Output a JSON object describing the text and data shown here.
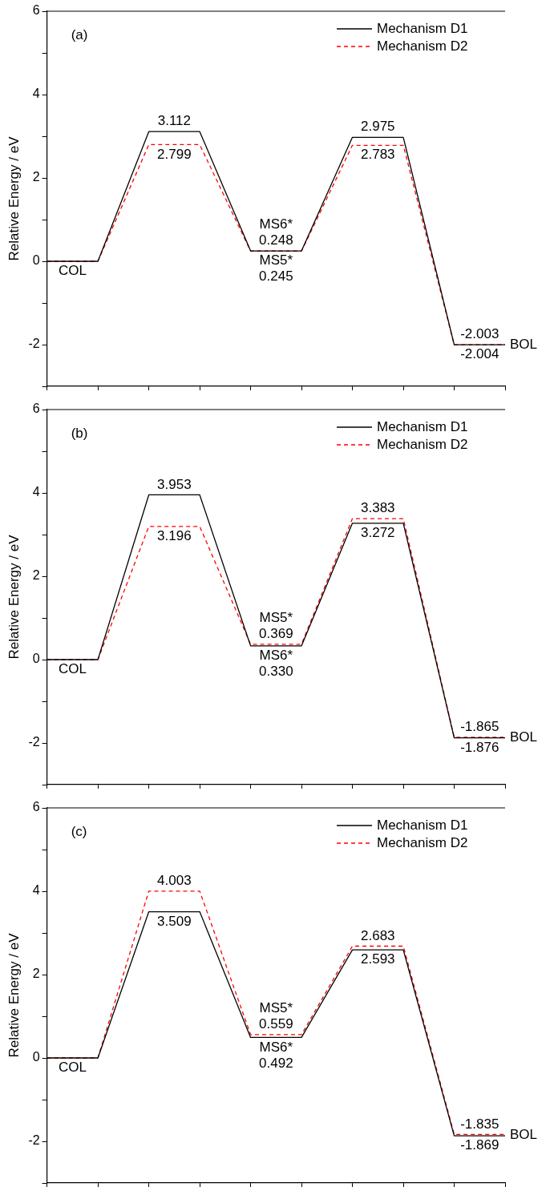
{
  "chart_data": [
    {
      "type": "line",
      "title": "(a)",
      "ylabel": "Relative Energy / eV",
      "categories": [
        null,
        null,
        null,
        null,
        null,
        null,
        null,
        null,
        null,
        null
      ],
      "ylim": [
        -3,
        6
      ],
      "yticks": [
        {
          "value": -3,
          "label": null
        },
        -2,
        {
          "value": -1,
          "label": null
        },
        0,
        {
          "value": 1,
          "label": null
        },
        2,
        {
          "value": 3,
          "label": null
        },
        4,
        {
          "value": 5,
          "label": null
        },
        6
      ],
      "tick_labels": "y",
      "grid": false,
      "legend": "top right",
      "marker": "none",
      "series": [
        {
          "name": "Mechanism D1",
          "color": "#000000",
          "line_style": "solid",
          "values": [
            0,
            0,
            3.112,
            3.112,
            0.248,
            0.248,
            2.975,
            2.975,
            -2.004,
            -2.004
          ],
          "value_labels": [
            null,
            null,
            "3.112",
            null,
            "0.248",
            null,
            "2.975",
            null,
            "-2.004",
            null
          ]
        },
        {
          "name": "Mechanism D2",
          "color": "#ff0000",
          "line_style": "dashed",
          "values": [
            0,
            0,
            2.799,
            2.799,
            0.245,
            0.245,
            2.783,
            2.783,
            -2.003,
            -2.003
          ],
          "value_labels": [
            null,
            null,
            "2.799",
            null,
            "0.245",
            null,
            "2.783",
            null,
            "-2.003",
            null
          ]
        }
      ],
      "annotations": [
        {
          "text": "COL",
          "y": 0
        },
        {
          "text": "MS6*",
          "y": 0.248
        },
        {
          "text": "MS5*",
          "y": 0.245
        },
        "BOL"
      ]
    },
    {
      "type": "line",
      "title": "(b)",
      "ylabel": "Relative Energy / eV",
      "categories": [
        null,
        null,
        null,
        null,
        null,
        null,
        null,
        null,
        null,
        null
      ],
      "ylim": [
        -3,
        6
      ],
      "yticks": [
        {
          "value": -3,
          "label": null
        },
        -2,
        {
          "value": -1,
          "label": null
        },
        0,
        {
          "value": 1,
          "label": null
        },
        2,
        {
          "value": 3,
          "label": null
        },
        4,
        {
          "value": 5,
          "label": null
        },
        6
      ],
      "tick_labels": "y",
      "grid": false,
      "legend": "top right",
      "marker": "none",
      "series": [
        {
          "name": "Mechanism D1",
          "color": "#000000",
          "line_style": "solid",
          "values": [
            0,
            0,
            3.953,
            3.953,
            0.33,
            0.33,
            3.272,
            3.272,
            -1.876,
            -1.876
          ],
          "value_labels": [
            null,
            null,
            "3.953",
            null,
            "0.330",
            null,
            "3.272",
            null,
            "-1.876",
            null
          ]
        },
        {
          "name": "Mechanism D2",
          "color": "#ff0000",
          "line_style": "dashed",
          "values": [
            0,
            0,
            3.196,
            3.196,
            0.369,
            0.369,
            3.383,
            3.383,
            -1.865,
            -1.865
          ],
          "value_labels": [
            null,
            null,
            "3.196",
            null,
            "0.369",
            null,
            "3.383",
            null,
            "-1.865",
            null
          ]
        }
      ],
      "annotations": [
        {
          "text": "COL",
          "y": 0
        },
        {
          "text": "MS5*",
          "y": 0.369
        },
        {
          "text": "MS6*",
          "y": 0.33
        },
        "BOL"
      ]
    },
    {
      "type": "line",
      "title": "(c)",
      "ylabel": "Relative Energy / eV",
      "categories": [
        null,
        null,
        null,
        null,
        null,
        null,
        null,
        null,
        null,
        null
      ],
      "ylim": [
        -3,
        6
      ],
      "yticks": [
        {
          "value": -3,
          "label": null
        },
        -2,
        {
          "value": -1,
          "label": null
        },
        0,
        {
          "value": 1,
          "label": null
        },
        2,
        {
          "value": 3,
          "label": null
        },
        4,
        {
          "value": 5,
          "label": null
        },
        6
      ],
      "tick_labels": "y",
      "grid": false,
      "legend": "top right",
      "marker": "none",
      "series": [
        {
          "name": "Mechanism D1",
          "color": "#000000",
          "line_style": "solid",
          "values": [
            0,
            0,
            3.509,
            3.509,
            0.492,
            0.492,
            2.593,
            2.593,
            -1.869,
            -1.869
          ],
          "value_labels": [
            null,
            null,
            "3.509",
            null,
            "0.492",
            null,
            "2.593",
            null,
            "-1.869",
            null
          ]
        },
        {
          "name": "Mechanism D2",
          "color": "#ff0000",
          "line_style": "dashed",
          "values": [
            0,
            0,
            4.003,
            4.003,
            0.559,
            0.559,
            2.683,
            2.683,
            -1.835,
            -1.835
          ],
          "value_labels": [
            null,
            null,
            "4.003",
            null,
            "0.559",
            null,
            "2.683",
            null,
            "-1.835",
            null
          ]
        }
      ],
      "annotations": [
        {
          "text": "COL",
          "y": 0
        },
        {
          "text": "MS5*",
          "y": 0.559
        },
        {
          "text": "MS6*",
          "y": 0.492
        },
        "BOL"
      ]
    }
  ]
}
